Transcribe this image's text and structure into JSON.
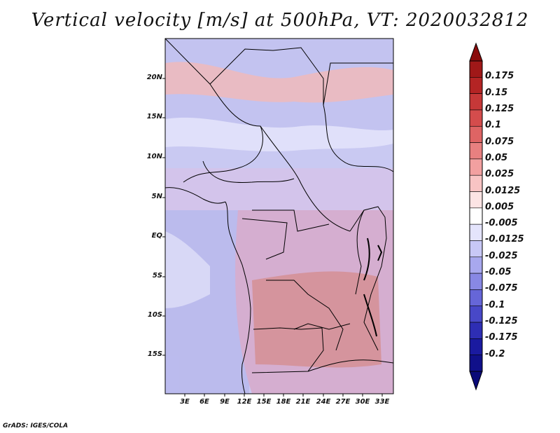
{
  "title": "Vertical velocity [m/s] at 500hPa, VT: 2020032812",
  "credit": "GrADS: IGES/COLA",
  "latitude_labels": [
    "20N",
    "15N",
    "10N",
    "5N",
    "EQ",
    "5S",
    "10S",
    "15S"
  ],
  "longitude_labels": [
    "3E",
    "6E",
    "9E",
    "12E",
    "15E",
    "18E",
    "21E",
    "24E",
    "27E",
    "30E",
    "33E"
  ],
  "colorbar": {
    "labels": [
      "0.175",
      "0.15",
      "0.125",
      "0.1",
      "0.075",
      "0.05",
      "0.025",
      "0.0125",
      "0.005",
      "-0.005",
      "-0.0125",
      "-0.025",
      "-0.05",
      "-0.075",
      "-0.1",
      "-0.125",
      "-0.175",
      "-0.2"
    ],
    "colors": [
      "#a01818",
      "#b42424",
      "#c63838",
      "#d44c4c",
      "#de6464",
      "#e88080",
      "#f2a0a0",
      "#f8c4c4",
      "#fce4e4",
      "#ffffff",
      "#e4e4fc",
      "#c8c8f6",
      "#a8a8ee",
      "#8888e4",
      "#6666d8",
      "#4848c8",
      "#2e2eb4",
      "#1a1aa0",
      "#10108a"
    ]
  }
}
